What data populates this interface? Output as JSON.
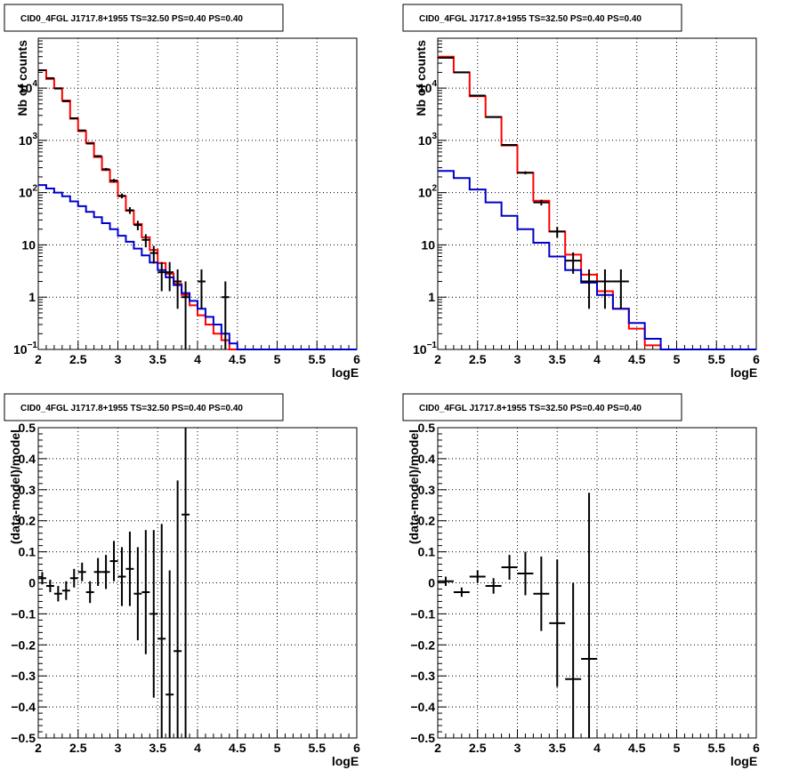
{
  "colors": {
    "data": "#000000",
    "total_model": "#ff0000",
    "component_model": "#0000cc",
    "grid": "#000000"
  },
  "chart_data": [
    {
      "type": "line",
      "title": "CID0_4FGL J1717.8+1955 TS=32.50 PS=0.40 PS=0.40",
      "xlabel": "logE",
      "ylabel": "Nb of counts",
      "log_y": true,
      "xlim": [
        2,
        6
      ],
      "ylim": [
        0.1,
        90000
      ],
      "grid": true,
      "x_ticks": [
        "2",
        "2.5",
        "3",
        "3.5",
        "4",
        "4.5",
        "5",
        "5.5",
        "6"
      ],
      "y_ticks": [
        {
          "value": 0.1,
          "label": "10",
          "sup": "−1"
        },
        {
          "value": 1,
          "label": "1",
          "sup": ""
        },
        {
          "value": 10,
          "label": "10",
          "sup": ""
        },
        {
          "value": 100,
          "label": "10",
          "sup": "2"
        },
        {
          "value": 1000,
          "label": "10",
          "sup": "3"
        },
        {
          "value": 10000,
          "label": "10",
          "sup": "4"
        }
      ],
      "bin_edges": [
        2.0,
        2.1,
        2.2,
        2.3,
        2.4,
        2.5,
        2.6,
        2.7,
        2.8,
        2.9,
        3.0,
        3.1,
        3.2,
        3.3,
        3.4,
        3.5,
        3.6,
        3.7,
        3.8,
        3.9,
        4.0,
        4.1,
        4.2,
        4.3,
        4.4,
        4.5,
        4.6,
        4.7,
        4.8,
        4.9,
        5.0,
        5.1,
        5.2,
        5.3,
        5.4,
        5.5,
        5.6,
        5.7,
        5.8,
        5.9,
        6.0
      ],
      "series": [
        {
          "role": "total_model",
          "values": [
            22000,
            15000,
            10000,
            5800,
            2600,
            1500,
            900,
            480,
            270,
            160,
            85,
            45,
            25,
            14,
            8,
            4.5,
            2.8,
            1.8,
            1.1,
            0.7,
            0.45,
            0.3,
            0.2,
            0.15,
            0.1,
            0.1,
            0.1,
            0.1,
            0.1,
            0.1,
            0.1,
            0.1,
            0.1,
            0.1,
            0.1,
            0.1,
            0.1,
            0.1,
            0.1,
            0.1
          ]
        },
        {
          "role": "component_model",
          "values": [
            140,
            120,
            100,
            85,
            68,
            55,
            43,
            34,
            26,
            20,
            15,
            11.5,
            8.5,
            6.3,
            4.6,
            3.3,
            2.4,
            1.7,
            1.2,
            0.85,
            0.6,
            0.42,
            0.3,
            0.2,
            0.13,
            0.1,
            0.1,
            0.1,
            0.1,
            0.1,
            0.1,
            0.1,
            0.1,
            0.1,
            0.1,
            0.1,
            0.1,
            0.1,
            0.1,
            0.1
          ]
        },
        {
          "role": "data",
          "points": [
            {
              "x": 2.05,
              "y": 22000,
              "err": 150
            },
            {
              "x": 2.15,
              "y": 15500,
              "err": 125
            },
            {
              "x": 2.25,
              "y": 9800,
              "err": 100
            },
            {
              "x": 2.35,
              "y": 5600,
              "err": 75
            },
            {
              "x": 2.45,
              "y": 2650,
              "err": 52
            },
            {
              "x": 2.55,
              "y": 1550,
              "err": 40
            },
            {
              "x": 2.65,
              "y": 870,
              "err": 30
            },
            {
              "x": 2.75,
              "y": 500,
              "err": 22
            },
            {
              "x": 2.85,
              "y": 280,
              "err": 17
            },
            {
              "x": 2.95,
              "y": 170,
              "err": 13
            },
            {
              "x": 3.05,
              "y": 87,
              "err": 9.3
            },
            {
              "x": 3.15,
              "y": 46,
              "err": 6.8
            },
            {
              "x": 3.25,
              "y": 24,
              "err": 4.9
            },
            {
              "x": 3.35,
              "y": 12.5,
              "err": 3.5
            },
            {
              "x": 3.45,
              "y": 7,
              "err": 2.6
            },
            {
              "x": 3.55,
              "y": 3,
              "err": 1.7
            },
            {
              "x": 3.65,
              "y": 3,
              "err": 1.7
            },
            {
              "x": 3.75,
              "y": 2,
              "err": 1.4
            },
            {
              "x": 3.85,
              "y": 1,
              "err": 1
            },
            {
              "x": 4.05,
              "y": 2,
              "err": 1.4
            },
            {
              "x": 4.35,
              "y": 1,
              "err": 1
            }
          ]
        }
      ]
    },
    {
      "type": "line",
      "title": "CID0_4FGL J1717.8+1955 TS=32.50 PS=0.40 PS=0.40",
      "xlabel": "logE",
      "ylabel": "Nb of counts",
      "log_y": true,
      "xlim": [
        2,
        6
      ],
      "ylim": [
        0.1,
        90000
      ],
      "grid": true,
      "x_ticks": [
        "2",
        "2.5",
        "3",
        "3.5",
        "4",
        "4.5",
        "5",
        "5.5",
        "6"
      ],
      "y_ticks": [
        {
          "value": 0.1,
          "label": "10",
          "sup": "−1"
        },
        {
          "value": 1,
          "label": "1",
          "sup": ""
        },
        {
          "value": 10,
          "label": "10",
          "sup": ""
        },
        {
          "value": 100,
          "label": "10",
          "sup": "2"
        },
        {
          "value": 1000,
          "label": "10",
          "sup": "3"
        },
        {
          "value": 10000,
          "label": "10",
          "sup": "4"
        }
      ],
      "bin_edges": [
        2.0,
        2.2,
        2.4,
        2.6,
        2.8,
        3.0,
        3.2,
        3.4,
        3.6,
        3.8,
        4.0,
        4.2,
        4.4,
        4.6,
        4.8,
        5.0,
        5.2,
        5.4,
        5.6,
        5.8,
        6.0
      ],
      "series": [
        {
          "role": "total_model",
          "values": [
            40000,
            20000,
            7000,
            2800,
            800,
            240,
            70,
            18,
            6.5,
            2.7,
            1.3,
            0.6,
            0.25,
            0.12,
            0.1,
            0.1,
            0.1,
            0.1,
            0.1,
            0.1
          ]
        },
        {
          "role": "component_model",
          "values": [
            260,
            190,
            115,
            65,
            36,
            20,
            11,
            6,
            3.3,
            1.9,
            1.1,
            0.6,
            0.32,
            0.16,
            0.1,
            0.1,
            0.1,
            0.1,
            0.1,
            0.1
          ]
        },
        {
          "role": "data",
          "points": [
            {
              "x": 2.1,
              "y": 38000,
              "err": 195
            },
            {
              "x": 2.3,
              "y": 20000,
              "err": 140
            },
            {
              "x": 2.5,
              "y": 7200,
              "err": 85
            },
            {
              "x": 2.7,
              "y": 2800,
              "err": 53
            },
            {
              "x": 2.9,
              "y": 820,
              "err": 29
            },
            {
              "x": 3.1,
              "y": 240,
              "err": 15.5
            },
            {
              "x": 3.3,
              "y": 65,
              "err": 8
            },
            {
              "x": 3.5,
              "y": 18,
              "err": 4.2
            },
            {
              "x": 3.7,
              "y": 5,
              "err": 2.2
            },
            {
              "x": 3.9,
              "y": 2,
              "err": 1.4
            },
            {
              "x": 4.1,
              "y": 2,
              "err": 1.4
            },
            {
              "x": 4.3,
              "y": 2,
              "err": 1.4
            }
          ]
        }
      ]
    },
    {
      "type": "scatter",
      "title": "CID0_4FGL J1717.8+1955 TS=32.50 PS=0.40 PS=0.40",
      "xlabel": "logE",
      "ylabel": "(data-model)/model",
      "log_y": false,
      "xlim": [
        2,
        6
      ],
      "ylim": [
        -0.5,
        0.5
      ],
      "grid": true,
      "x_ticks": [
        "2",
        "2.5",
        "3",
        "3.5",
        "4",
        "4.5",
        "5",
        "5.5",
        "6"
      ],
      "y_ticks": [
        {
          "value": -0.5,
          "label": "−0.5",
          "sup": ""
        },
        {
          "value": -0.4,
          "label": "−0.4",
          "sup": ""
        },
        {
          "value": -0.3,
          "label": "−0.3",
          "sup": ""
        },
        {
          "value": -0.2,
          "label": "−0.2",
          "sup": ""
        },
        {
          "value": -0.1,
          "label": "−0.1",
          "sup": ""
        },
        {
          "value": 0,
          "label": "0",
          "sup": ""
        },
        {
          "value": 0.1,
          "label": "0.1",
          "sup": ""
        },
        {
          "value": 0.2,
          "label": "0.2",
          "sup": ""
        },
        {
          "value": 0.3,
          "label": "0.3",
          "sup": ""
        },
        {
          "value": 0.4,
          "label": "0.4",
          "sup": ""
        },
        {
          "value": 0.5,
          "label": "0.5",
          "sup": ""
        }
      ],
      "series": [
        {
          "role": "data",
          "points": [
            {
              "x": 2.05,
              "y": 0.015,
              "err": 0.02,
              "xerr": 0.05
            },
            {
              "x": 2.15,
              "y": -0.01,
              "err": 0.02,
              "xerr": 0.05
            },
            {
              "x": 2.25,
              "y": -0.035,
              "err": 0.025,
              "xerr": 0.05
            },
            {
              "x": 2.35,
              "y": -0.025,
              "err": 0.03,
              "xerr": 0.05
            },
            {
              "x": 2.45,
              "y": 0.015,
              "err": 0.03,
              "xerr": 0.05
            },
            {
              "x": 2.55,
              "y": 0.035,
              "err": 0.03,
              "xerr": 0.05
            },
            {
              "x": 2.65,
              "y": -0.03,
              "err": 0.035,
              "xerr": 0.05
            },
            {
              "x": 2.75,
              "y": 0.035,
              "err": 0.045,
              "xerr": 0.05
            },
            {
              "x": 2.85,
              "y": 0.035,
              "err": 0.055,
              "xerr": 0.05
            },
            {
              "x": 2.95,
              "y": 0.07,
              "err": 0.065,
              "xerr": 0.05
            },
            {
              "x": 3.05,
              "y": 0.02,
              "err": 0.095,
              "xerr": 0.05
            },
            {
              "x": 3.15,
              "y": 0.045,
              "err": 0.12,
              "xerr": 0.05
            },
            {
              "x": 3.25,
              "y": -0.035,
              "err": 0.15,
              "xerr": 0.05
            },
            {
              "x": 3.35,
              "y": -0.03,
              "err": 0.2,
              "xerr": 0.05
            },
            {
              "x": 3.45,
              "y": -0.1,
              "err": 0.27,
              "xerr": 0.05
            },
            {
              "x": 3.55,
              "y": -0.18,
              "err": 0.37,
              "xerr": 0.05
            },
            {
              "x": 3.65,
              "y": -0.36,
              "err": 0.4,
              "xerr": 0.05
            },
            {
              "x": 3.75,
              "y": -0.22,
              "err": 0.55,
              "xerr": 0.05
            },
            {
              "x": 3.85,
              "y": 0.22,
              "err": 0.75,
              "xerr": 0.05
            }
          ]
        }
      ]
    },
    {
      "type": "scatter",
      "title": "CID0_4FGL J1717.8+1955 TS=32.50 PS=0.40 PS=0.40",
      "xlabel": "logE",
      "ylabel": "(data-model)/model",
      "log_y": false,
      "xlim": [
        2,
        6
      ],
      "ylim": [
        -0.5,
        0.5
      ],
      "grid": true,
      "x_ticks": [
        "2",
        "2.5",
        "3",
        "3.5",
        "4",
        "4.5",
        "5",
        "5.5",
        "6"
      ],
      "y_ticks": [
        {
          "value": -0.5,
          "label": "−0.5",
          "sup": ""
        },
        {
          "value": -0.4,
          "label": "−0.4",
          "sup": ""
        },
        {
          "value": -0.3,
          "label": "−0.3",
          "sup": ""
        },
        {
          "value": -0.2,
          "label": "−0.2",
          "sup": ""
        },
        {
          "value": -0.1,
          "label": "−0.1",
          "sup": ""
        },
        {
          "value": 0,
          "label": "0",
          "sup": ""
        },
        {
          "value": 0.1,
          "label": "0.1",
          "sup": ""
        },
        {
          "value": 0.2,
          "label": "0.2",
          "sup": ""
        },
        {
          "value": 0.3,
          "label": "0.3",
          "sup": ""
        },
        {
          "value": 0.4,
          "label": "0.4",
          "sup": ""
        },
        {
          "value": 0.5,
          "label": "0.5",
          "sup": ""
        }
      ],
      "series": [
        {
          "role": "data",
          "points": [
            {
              "x": 2.1,
              "y": 0.005,
              "err": 0.015,
              "xerr": 0.1
            },
            {
              "x": 2.3,
              "y": -0.03,
              "err": 0.015,
              "xerr": 0.1
            },
            {
              "x": 2.5,
              "y": 0.02,
              "err": 0.02,
              "xerr": 0.1
            },
            {
              "x": 2.7,
              "y": -0.01,
              "err": 0.025,
              "xerr": 0.1
            },
            {
              "x": 2.9,
              "y": 0.05,
              "err": 0.04,
              "xerr": 0.1
            },
            {
              "x": 3.1,
              "y": 0.03,
              "err": 0.07,
              "xerr": 0.1
            },
            {
              "x": 3.3,
              "y": -0.035,
              "err": 0.12,
              "xerr": 0.1
            },
            {
              "x": 3.5,
              "y": -0.13,
              "err": 0.205,
              "xerr": 0.1
            },
            {
              "x": 3.7,
              "y": -0.31,
              "err": 0.31,
              "xerr": 0.1
            },
            {
              "x": 3.9,
              "y": -0.245,
              "err": 0.535,
              "xerr": 0.1
            }
          ]
        }
      ]
    }
  ]
}
